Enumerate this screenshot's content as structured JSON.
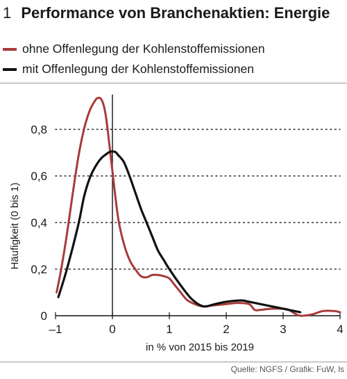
{
  "figure": {
    "number": "1",
    "source": "Quelle: NGFS / Grafik: FuW, ls"
  },
  "chart_data": {
    "type": "line",
    "title": "Performance von Branchenaktien: Energie",
    "xlabel": "in % von 2015 bis 2019",
    "ylabel": "Häufigkeit (0 bis 1)",
    "xlim": [
      -1,
      4
    ],
    "ylim": [
      0,
      1
    ],
    "x_ticks": [
      -1,
      0,
      1,
      2,
      3,
      4
    ],
    "x_tick_labels": [
      "–1",
      "0",
      "1",
      "2",
      "3",
      "4"
    ],
    "y_ticks": [
      0,
      0.2,
      0.4,
      0.6,
      0.8
    ],
    "y_tick_labels": [
      "0",
      "0,2",
      "0,4",
      "0,6",
      "0,8"
    ],
    "grid": "dotted-horizontal",
    "vertical_reference_line_x": 0,
    "legend_position": "top-left",
    "series": [
      {
        "name": "ohne Offenlegung der Kohlenstoffemissionen",
        "color": "#a83a3a",
        "x": [
          -0.98,
          -0.9,
          -0.8,
          -0.7,
          -0.6,
          -0.5,
          -0.4,
          -0.3,
          -0.25,
          -0.2,
          -0.15,
          -0.1,
          0,
          0.1,
          0.2,
          0.3,
          0.4,
          0.5,
          0.6,
          0.7,
          0.8,
          0.9,
          1.0,
          1.1,
          1.2,
          1.3,
          1.4,
          1.5,
          1.6,
          1.8,
          2.0,
          2.2,
          2.4,
          2.5,
          2.6,
          2.8,
          3.0,
          3.1,
          3.2,
          3.3,
          3.5,
          3.7,
          3.9,
          4.0
        ],
        "y": [
          0.1,
          0.2,
          0.35,
          0.52,
          0.68,
          0.8,
          0.88,
          0.925,
          0.935,
          0.93,
          0.9,
          0.83,
          0.62,
          0.42,
          0.31,
          0.24,
          0.2,
          0.17,
          0.165,
          0.175,
          0.175,
          0.17,
          0.16,
          0.13,
          0.1,
          0.07,
          0.055,
          0.045,
          0.04,
          0.045,
          0.05,
          0.055,
          0.05,
          0.025,
          0.025,
          0.03,
          0.03,
          0.025,
          0.01,
          0.0,
          0.005,
          0.02,
          0.02,
          0.015
        ]
      },
      {
        "name": "mit Offenlegung der Kohlenstoffemissionen",
        "color": "#111111",
        "x": [
          -0.95,
          -0.8,
          -0.6,
          -0.5,
          -0.4,
          -0.3,
          -0.2,
          -0.1,
          -0.05,
          0,
          0.05,
          0.1,
          0.2,
          0.3,
          0.4,
          0.5,
          0.6,
          0.7,
          0.8,
          0.9,
          1.0,
          1.2,
          1.4,
          1.6,
          1.8,
          2.0,
          2.2,
          2.3,
          2.4,
          2.6,
          2.8,
          3.0,
          3.2,
          3.3
        ],
        "y": [
          0.08,
          0.2,
          0.39,
          0.51,
          0.59,
          0.64,
          0.675,
          0.695,
          0.703,
          0.705,
          0.703,
          0.69,
          0.66,
          0.6,
          0.53,
          0.46,
          0.4,
          0.34,
          0.28,
          0.24,
          0.2,
          0.13,
          0.07,
          0.04,
          0.05,
          0.06,
          0.065,
          0.065,
          0.06,
          0.05,
          0.04,
          0.03,
          0.02,
          0.015
        ]
      }
    ]
  }
}
